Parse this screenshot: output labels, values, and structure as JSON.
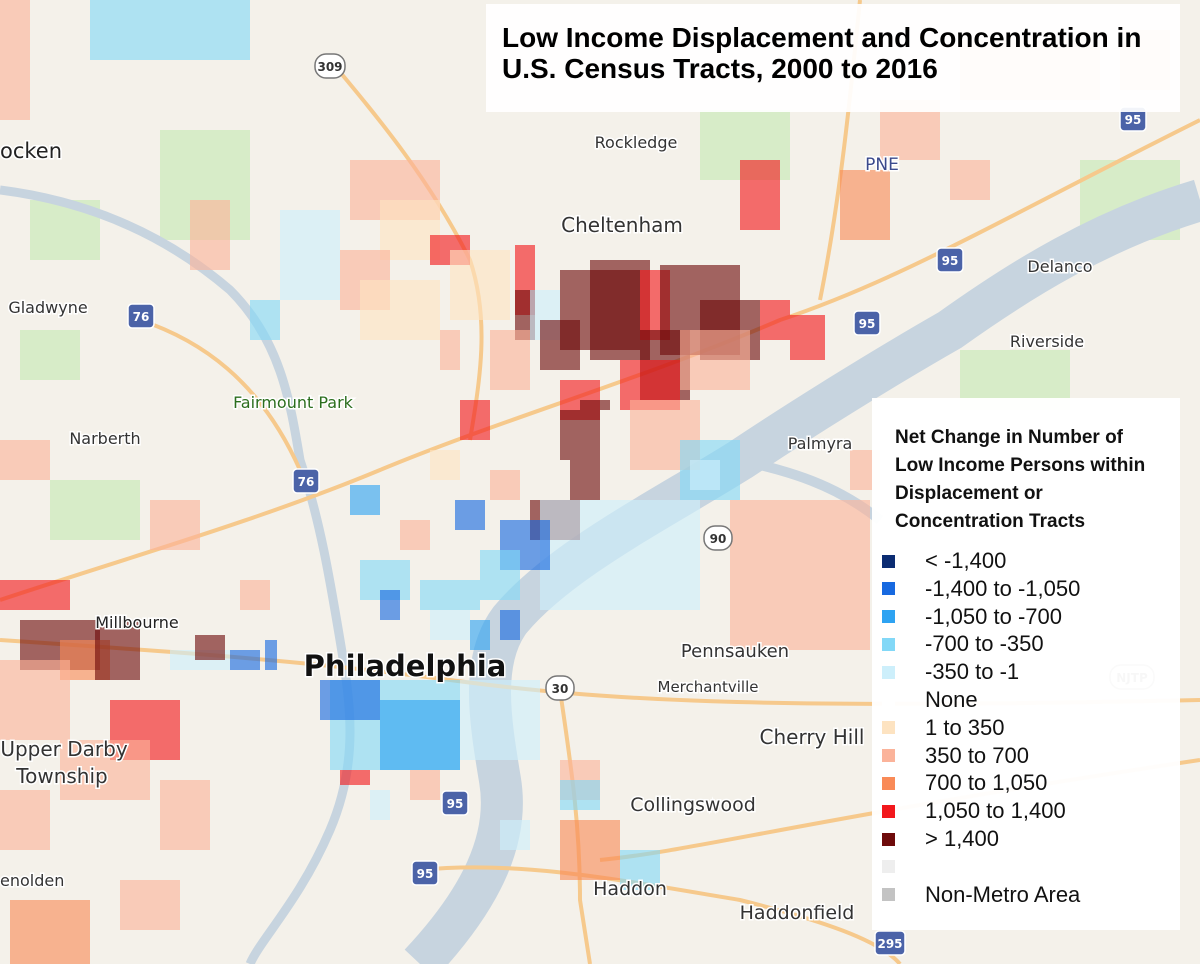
{
  "title": "Low Income Displacement and Concentration in U.S. Census Tracts, 2000 to 2016",
  "legend": {
    "title": "Net Change in Number of Low Income Persons within Displacement or Concentration Tracts",
    "items": [
      {
        "label": "< -1,400",
        "color": "#0b2c72"
      },
      {
        "label": "-1,400 to -1,050",
        "color": "#1769e0"
      },
      {
        "label": "-1,050 to -700",
        "color": "#2ea3f2"
      },
      {
        "label": "-700 to -350",
        "color": "#82d8f7"
      },
      {
        "label": "-350 to -1",
        "color": "#cdeffb"
      },
      {
        "label": "None",
        "color": "#ffffff"
      },
      {
        "label": "1 to 350",
        "color": "#fde3c1"
      },
      {
        "label": "350 to 700",
        "color": "#fbb39a"
      },
      {
        "label": "700 to 1,050",
        "color": "#f98a57"
      },
      {
        "label": "1,050 to 1,400",
        "color": "#f2181c"
      },
      {
        "label": "> 1,400",
        "color": "#6e0b0b"
      },
      {
        "label": "Non-Metro Area",
        "color": "#c3c3c3"
      }
    ]
  },
  "places": [
    "ocken",
    "Rockledge",
    "Cheltenham",
    "Gladwyne",
    "Fairmount Park",
    "Narberth",
    "Palmyra",
    "Riverside",
    "Delanco",
    "Millbourne",
    "Philadelphia",
    "Pennsauken",
    "Merchantville",
    "Cherry Hill",
    "Upper Darby",
    "Township",
    "Collingswood",
    "Haddon",
    "Haddonfield",
    "enolden",
    "PNE"
  ],
  "shields": [
    "309",
    "95",
    "95",
    "76",
    "95",
    "76",
    "90",
    "30",
    "95",
    "95",
    "NJTP",
    "295"
  ]
}
